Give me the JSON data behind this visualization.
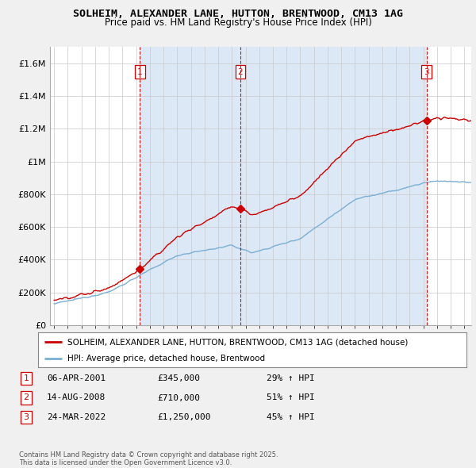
{
  "title": "SOLHEIM, ALEXANDER LANE, HUTTON, BRENTWOOD, CM13 1AG",
  "subtitle": "Price paid vs. HM Land Registry's House Price Index (HPI)",
  "red_label": "SOLHEIM, ALEXANDER LANE, HUTTON, BRENTWOOD, CM13 1AG (detached house)",
  "blue_label": "HPI: Average price, detached house, Brentwood",
  "footer": "Contains HM Land Registry data © Crown copyright and database right 2025.\nThis data is licensed under the Open Government Licence v3.0.",
  "purchases": [
    {
      "num": 1,
      "date": "06-APR-2001",
      "price": "£345,000",
      "hpi": "29% ↑ HPI"
    },
    {
      "num": 2,
      "date": "14-AUG-2008",
      "price": "£710,000",
      "hpi": "51% ↑ HPI"
    },
    {
      "num": 3,
      "date": "24-MAR-2022",
      "price": "£1,250,000",
      "hpi": "45% ↑ HPI"
    }
  ],
  "purchase_years": [
    2001.27,
    2008.62,
    2022.23
  ],
  "purchase_values_red": [
    345000,
    710000,
    1250000
  ],
  "purchase_values_blue": [
    267000,
    470000,
    862000
  ],
  "ylim": [
    0,
    1700000
  ],
  "yticks": [
    0,
    200000,
    400000,
    600000,
    800000,
    1000000,
    1200000,
    1400000,
    1600000
  ],
  "ytick_labels": [
    "£0",
    "£200K",
    "£400K",
    "£600K",
    "£800K",
    "£1M",
    "£1.2M",
    "£1.4M",
    "£1.6M"
  ],
  "red_color": "#cc0000",
  "blue_color": "#7bafd4",
  "shade_color": "#dce8f5",
  "vline_color": "#cc0000",
  "background_color": "#f0f0f0",
  "plot_bg_color": "#ffffff"
}
